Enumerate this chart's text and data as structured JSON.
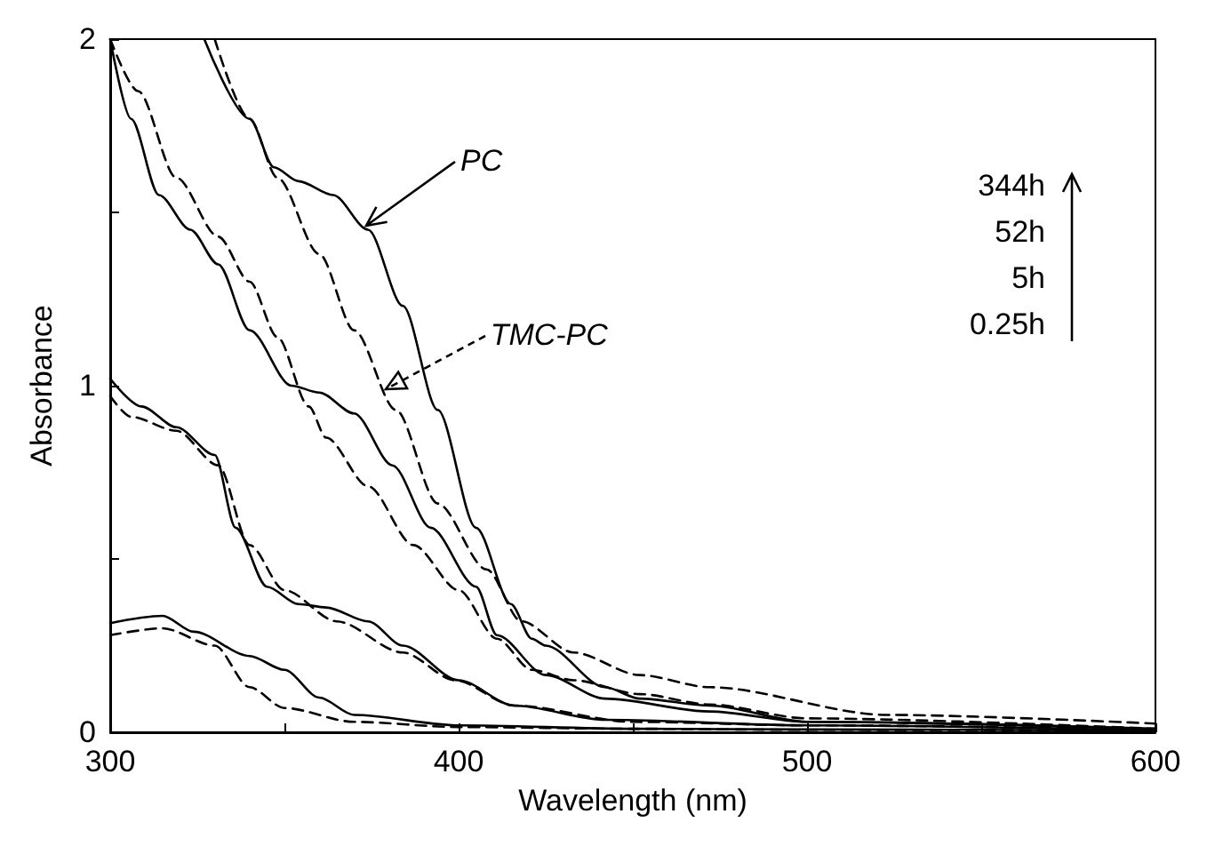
{
  "chart_data": {
    "type": "line",
    "xlabel": "Wavelength (nm)",
    "ylabel": "Absorbance",
    "xlim": [
      300,
      600
    ],
    "ylim": [
      0,
      2
    ],
    "xticks": [
      300,
      {
        "value": 350,
        "label": null
      },
      400,
      {
        "value": 450,
        "label": null
      },
      500,
      {
        "value": 550,
        "label": null
      },
      600
    ],
    "yticks": [
      0,
      {
        "value": 0.5,
        "label": null
      },
      1,
      {
        "value": 1.5,
        "label": null
      },
      2
    ],
    "grid": false,
    "marker": "none",
    "series": [
      {
        "color": "#000000",
        "line_style": "solid",
        "x": [
          300,
          315,
          324,
          340,
          350,
          360,
          370,
          400,
          450,
          500,
          600
        ],
        "values": [
          0.315,
          0.336,
          0.29,
          0.22,
          0.18,
          0.1,
          0.05,
          0.02,
          0.01,
          0.008,
          0.005
        ]
      },
      {
        "color": "#000000",
        "line_style": "dashed",
        "x": [
          300,
          315,
          330,
          340,
          350,
          370,
          400,
          450,
          500,
          600
        ],
        "values": [
          0.28,
          0.3,
          0.25,
          0.13,
          0.07,
          0.03,
          0.015,
          0.01,
          0.007,
          0.005
        ]
      },
      {
        "color": "#000000",
        "line_style": "solid",
        "x": [
          300,
          309,
          319,
          330,
          336,
          345,
          354,
          362,
          374,
          384,
          400,
          416,
          442,
          500,
          600
        ],
        "values": [
          1.02,
          0.94,
          0.88,
          0.8,
          0.59,
          0.42,
          0.37,
          0.36,
          0.32,
          0.25,
          0.15,
          0.077,
          0.036,
          0.02,
          0.005
        ]
      },
      {
        "color": "#000000",
        "line_style": "dashed",
        "x": [
          300,
          306,
          319,
          331,
          340,
          350,
          365,
          384,
          399,
          416,
          450,
          500,
          600
        ],
        "values": [
          0.97,
          0.91,
          0.87,
          0.77,
          0.54,
          0.41,
          0.32,
          0.23,
          0.15,
          0.077,
          0.03,
          0.02,
          0.008
        ]
      },
      {
        "color": "#000000",
        "line_style": "solid",
        "x": [
          300,
          306,
          314,
          323,
          331,
          340,
          352,
          360,
          370,
          381,
          392,
          405,
          411,
          425,
          442,
          472,
          500,
          600
        ],
        "values": [
          2.0,
          1.77,
          1.55,
          1.45,
          1.35,
          1.16,
          1.0,
          0.98,
          0.92,
          0.77,
          0.59,
          0.42,
          0.28,
          0.165,
          0.097,
          0.06,
          0.03,
          0.01
        ]
      },
      {
        "color": "#000000",
        "line_style": "dashed",
        "x": [
          300,
          308,
          319,
          331,
          340,
          348,
          357,
          362,
          374,
          387,
          400,
          411,
          421,
          433,
          452,
          472,
          500,
          600
        ],
        "values": [
          2.0,
          1.85,
          1.6,
          1.43,
          1.3,
          1.14,
          0.94,
          0.85,
          0.71,
          0.54,
          0.41,
          0.27,
          0.18,
          0.15,
          0.11,
          0.08,
          0.04,
          0.01
        ]
      },
      {
        "color": "#000000",
        "line_style": "solid",
        "x": [
          327,
          340,
          347,
          354,
          364,
          374,
          384,
          394,
          405,
          415,
          421,
          425,
          442,
          452,
          472,
          500,
          600
        ],
        "values": [
          2.0,
          1.77,
          1.63,
          1.59,
          1.55,
          1.45,
          1.23,
          0.93,
          0.59,
          0.37,
          0.27,
          0.25,
          0.13,
          0.097,
          0.077,
          0.03,
          0.01
        ]
      },
      {
        "color": "#000000",
        "line_style": "dashed",
        "x": [
          330,
          340,
          348,
          360,
          370,
          382,
          394,
          408,
          418,
          433,
          452,
          472,
          523,
          600
        ],
        "values": [
          2.0,
          1.77,
          1.6,
          1.38,
          1.16,
          0.93,
          0.66,
          0.47,
          0.32,
          0.23,
          0.165,
          0.13,
          0.05,
          0.025
        ]
      }
    ],
    "annotations": [
      {
        "text": "PC",
        "x": 373.5,
        "y": 1.46
      },
      {
        "text": "TMC-PC",
        "x": 379,
        "y": 0.99
      },
      "344h",
      "52h",
      "5h",
      "0.25h"
    ]
  }
}
